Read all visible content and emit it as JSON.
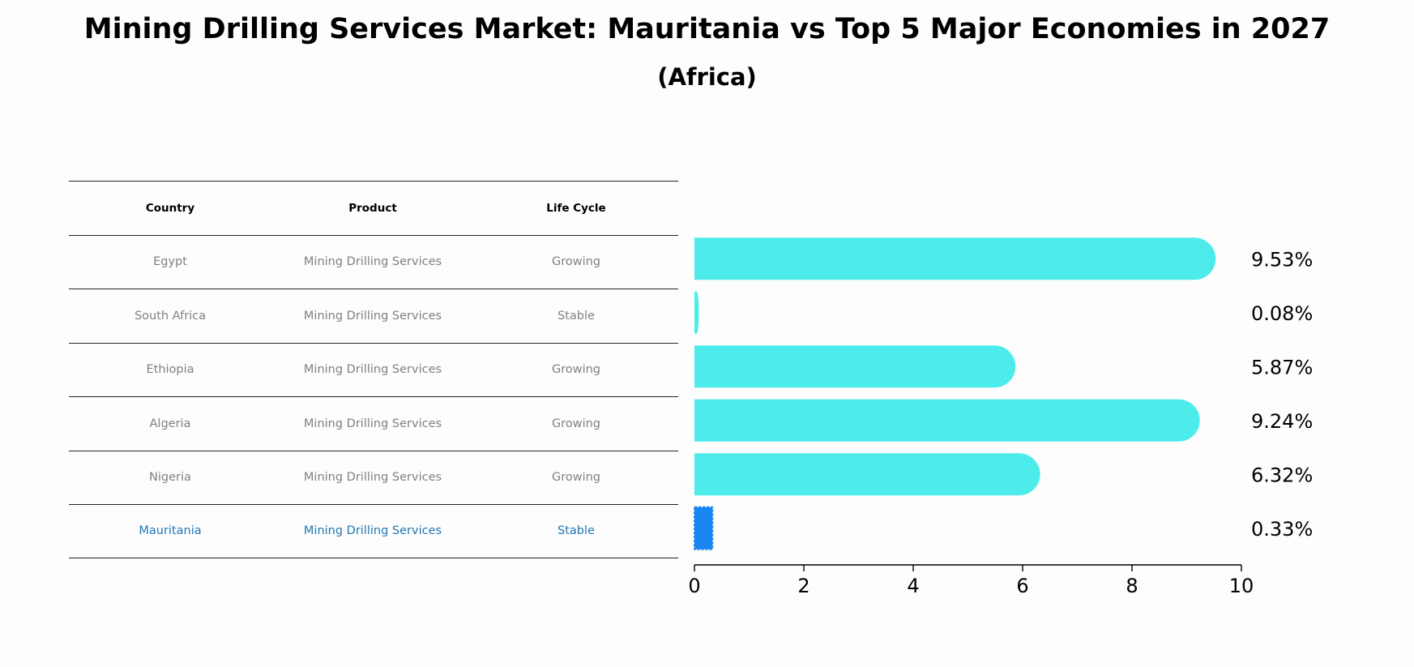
{
  "title": "Mining Drilling Services Market: Mauritania vs Top 5 Major Economies in 2027",
  "subtitle": "(Africa)",
  "table": {
    "headers": [
      "Country",
      "Product",
      "Life Cycle"
    ],
    "rows": [
      [
        "Egypt",
        "Mining Drilling Services",
        "Growing"
      ],
      [
        "South Africa",
        "Mining Drilling Services",
        "Stable"
      ],
      [
        "Ethiopia",
        "Mining Drilling Services",
        "Growing"
      ],
      [
        "Algeria",
        "Mining Drilling Services",
        "Growing"
      ],
      [
        "Nigeria",
        "Mining Drilling Services",
        "Growing"
      ],
      [
        "Mauritania",
        "Mining Drilling Services",
        "Stable"
      ]
    ]
  },
  "chart_data": {
    "type": "bar",
    "orientation": "horizontal",
    "categories": [
      "Egypt",
      "South Africa",
      "Ethiopia",
      "Algeria",
      "Nigeria",
      "Mauritania"
    ],
    "values": [
      9.53,
      0.08,
      5.87,
      9.24,
      6.32,
      0.33
    ],
    "value_labels": [
      "9.53%",
      "0.08%",
      "5.87%",
      "9.24%",
      "6.32%",
      "0.33%"
    ],
    "xlim": [
      0,
      10
    ],
    "xticks": [
      0,
      2,
      4,
      6,
      8,
      10
    ],
    "xlabel": "",
    "ylabel": "",
    "highlight": "Mauritania"
  },
  "colors": {
    "bar": "#4deceb",
    "highlight_bar": "#1a86f0",
    "highlight_text": "#1f77b4",
    "muted_text": "#808080"
  }
}
